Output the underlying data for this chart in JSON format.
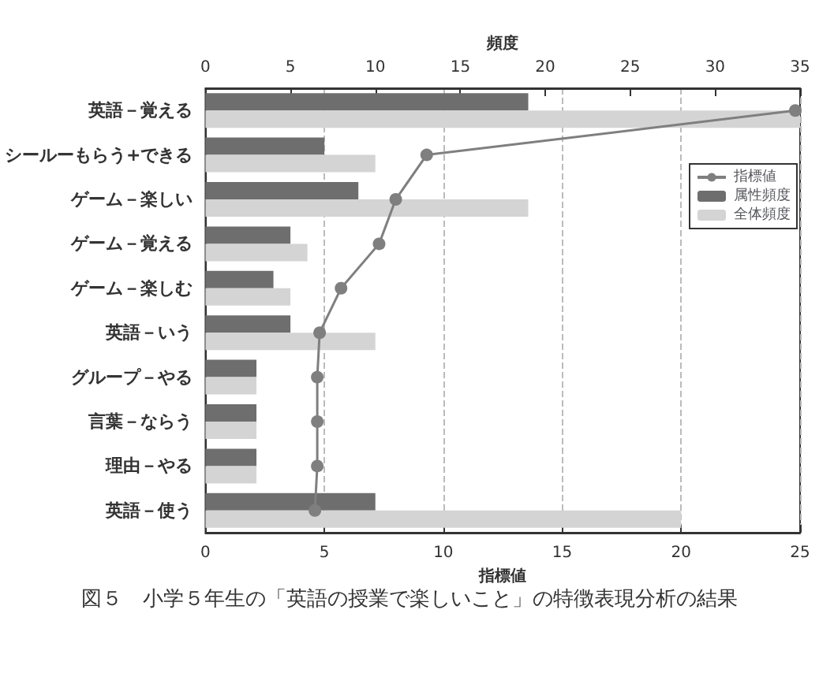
{
  "chart_data": {
    "type": "bar",
    "orientation": "horizontal",
    "xlabel": "指標値",
    "x2label": "頻度",
    "annotations": [
      "図５　小学５年生の「英語の授業で楽しいこと」の特徴表現分析の結果"
    ],
    "categories": [
      "英語－覚える",
      "シールーもらう+できる",
      "ゲーム－楽しい",
      "ゲーム－覚える",
      "ゲーム－楽しむ",
      "英語－いう",
      "グループ－やる",
      "言葉－ならう",
      "理由－やる",
      "英語－使う"
    ],
    "series": [
      {
        "name": "指標値",
        "type": "line",
        "color": "#7f7f7f",
        "marker": "circle",
        "line_style": "solid",
        "values": [
          24.8,
          9.3,
          8.0,
          7.3,
          5.7,
          4.8,
          4.7,
          4.7,
          4.7,
          4.6
        ]
      },
      {
        "name": "属性頻度",
        "axis": "x2",
        "color": "#6e6e6e",
        "values": [
          19,
          7,
          9,
          5,
          4,
          5,
          3,
          3,
          3,
          10
        ]
      },
      {
        "name": "全体頻度",
        "axis": "x2",
        "color": "#d4d4d4",
        "values": [
          35,
          10,
          19,
          6,
          5,
          10,
          3,
          3,
          3,
          28
        ]
      }
    ],
    "xlim": [
      0,
      25
    ],
    "xticks": [
      0,
      5,
      10,
      15,
      20,
      25
    ],
    "x2lim": [
      0,
      35
    ],
    "x2ticks": [
      0,
      5,
      10,
      15,
      20,
      25,
      30,
      35
    ],
    "grid": "x",
    "legend": "top right"
  }
}
